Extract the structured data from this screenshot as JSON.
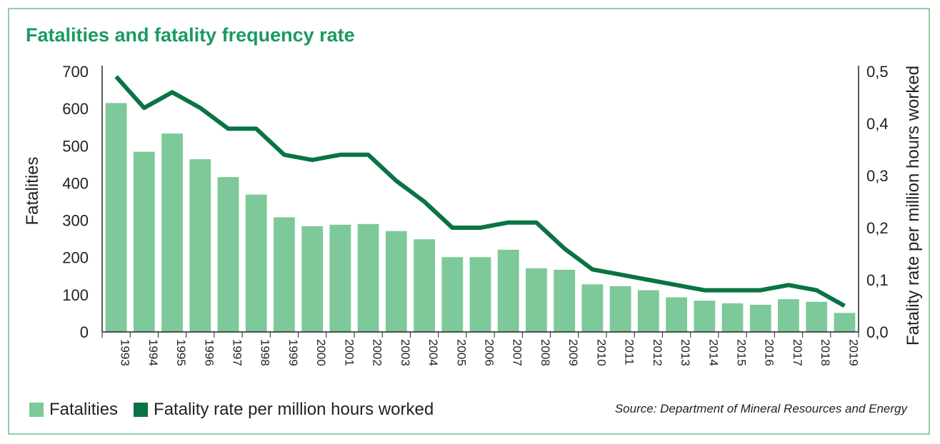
{
  "title": "Fatalities and fatality frequency rate",
  "source": "Source: Department of Mineral Resources and Energy",
  "colors": {
    "bars": "#7dc99a",
    "line": "#0a7344",
    "title": "#1a9a63",
    "frame": "#8fcfae"
  },
  "legend": {
    "bars_label": "Fatalities",
    "line_label": "Fatality rate per million hours worked"
  },
  "chart_data": {
    "type": "bar",
    "title": "Fatalities and fatality frequency rate",
    "categories": [
      "1993",
      "1994",
      "1995",
      "1996",
      "1997",
      "1998",
      "1999",
      "2000",
      "2001",
      "2002",
      "2003",
      "2004",
      "2005",
      "2006",
      "2007",
      "2008",
      "2009",
      "2010",
      "2011",
      "2012",
      "2013",
      "2014",
      "2015",
      "2016",
      "2017",
      "2018",
      "2019"
    ],
    "series": [
      {
        "name": "Fatalities",
        "type": "bar",
        "axis": "left",
        "values": [
          615,
          484,
          533,
          464,
          416,
          369,
          308,
          284,
          288,
          290,
          271,
          249,
          201,
          201,
          221,
          171,
          167,
          128,
          123,
          112,
          93,
          84,
          77,
          73,
          88,
          81,
          51
        ]
      },
      {
        "name": "Fatality rate per million hours worked",
        "type": "line",
        "axis": "right",
        "values": [
          0.49,
          0.43,
          0.46,
          0.43,
          0.39,
          0.39,
          0.34,
          0.33,
          0.34,
          0.34,
          0.29,
          0.25,
          0.2,
          0.2,
          0.21,
          0.21,
          0.16,
          0.12,
          0.11,
          0.1,
          0.09,
          0.08,
          0.08,
          0.08,
          0.09,
          0.08,
          0.05
        ]
      }
    ],
    "ylabel": "Fatalities",
    "ylim": [
      0,
      700
    ],
    "yticks": [
      "0",
      "100",
      "200",
      "300",
      "400",
      "500",
      "600",
      "700"
    ],
    "ylabel_right": "Fatality rate per million hours worked",
    "ylim_right": [
      0,
      0.5
    ],
    "yticks_right": [
      "0,0",
      "0,1",
      "0,2",
      "0,3",
      "0,4",
      "0,5"
    ],
    "grid": false,
    "legend_position": "bottom-left"
  }
}
